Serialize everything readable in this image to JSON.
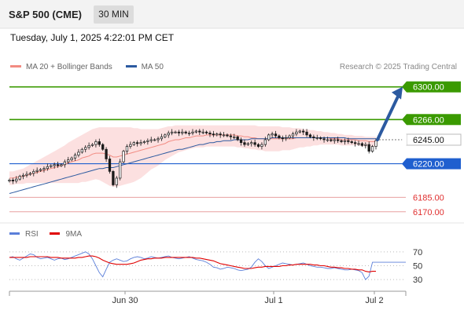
{
  "header": {
    "title": "S&P 500 (CME)",
    "timeframe": "30 MIN"
  },
  "datetime": "Tuesday, July 1, 2025 4:22:01 PM CET",
  "legend": [
    {
      "label": "MA 20 + Bollinger Bands",
      "color": "#f28b82"
    },
    {
      "label": "MA 50",
      "color": "#2c5aa0"
    }
  ],
  "research": "Research © 2025 Trading Central",
  "rsi_legend": [
    {
      "label": "RSI",
      "color": "#5b7fd9"
    },
    {
      "label": "9MA",
      "color": "#e00000"
    }
  ],
  "colors": {
    "up": "#1a1a1a",
    "down": "#1a1a1a",
    "green": "#3a9a00",
    "blue": "#1f5fcf",
    "red": "#e8a0a0",
    "band": "#fbd6d6"
  },
  "chart_data": [
    {
      "type": "candlestick",
      "ylim": [
        6160,
        6312
      ],
      "current_price": "6245.00",
      "levels": [
        {
          "label": "6300.00",
          "value": 6300,
          "style": "green"
        },
        {
          "label": "6266.00",
          "value": 6266,
          "style": "green"
        },
        {
          "label": "6245.00",
          "value": 6245,
          "style": "current"
        },
        {
          "label": "6220.00",
          "value": 6220,
          "style": "blue"
        },
        {
          "label": "6185.00",
          "value": 6185,
          "style": "red"
        },
        {
          "label": "6170.00",
          "value": 6170,
          "style": "red"
        }
      ],
      "x_ticks": [
        "Jun 30",
        "Jul 1",
        "Jul 2"
      ],
      "target_arrow": {
        "from": 6245,
        "to": 6300
      },
      "closes": [
        6203,
        6202,
        6204,
        6207,
        6208,
        6209,
        6210,
        6212,
        6213,
        6214,
        6215,
        6217,
        6218,
        6219,
        6218,
        6219,
        6222,
        6224,
        6226,
        6229,
        6232,
        6235,
        6237,
        6239,
        6240,
        6243,
        6240,
        6235,
        6225,
        6212,
        6198,
        6205,
        6222,
        6233,
        6238,
        6240,
        6242,
        6241,
        6242,
        6243,
        6244,
        6245,
        6245,
        6246,
        6248,
        6250,
        6252,
        6253,
        6253,
        6252,
        6253,
        6252,
        6252,
        6253,
        6254,
        6253,
        6253,
        6252,
        6251,
        6250,
        6251,
        6250,
        6250,
        6249,
        6248,
        6248,
        6245,
        6242,
        6240,
        6241,
        6242,
        6240,
        6238,
        6240,
        6245,
        6250,
        6251,
        6249,
        6247,
        6246,
        6247,
        6249,
        6251,
        6253,
        6254,
        6253,
        6250,
        6248,
        6247,
        6247,
        6246,
        6245,
        6245,
        6244,
        6245,
        6244,
        6243,
        6244,
        6243,
        6242,
        6241,
        6241,
        6239,
        6240,
        6233,
        6238,
        6244
      ],
      "ma20": [
        6205,
        6205,
        6206,
        6206,
        6207,
        6208,
        6209,
        6210,
        6211,
        6212,
        6213,
        6214,
        6215,
        6216,
        6217,
        6218,
        6219,
        6221,
        6222,
        6223,
        6224,
        6226,
        6227,
        6228,
        6230,
        6231,
        6231,
        6231,
        6230,
        6229,
        6227,
        6227,
        6228,
        6229,
        6230,
        6231,
        6232,
        6233,
        6234,
        6235,
        6236,
        6237,
        6238,
        6239,
        6240,
        6241,
        6243,
        6244,
        6245,
        6245,
        6246,
        6247,
        6247,
        6248,
        6249,
        6249,
        6249,
        6250,
        6250,
        6250,
        6250,
        6250,
        6250,
        6250,
        6250,
        6250,
        6249,
        6249,
        6248,
        6248,
        6247,
        6247,
        6246,
        6246,
        6246,
        6246,
        6246,
        6246,
        6246,
        6246,
        6246,
        6246,
        6246,
        6247,
        6247,
        6247,
        6247,
        6247,
        6247,
        6247,
        6247,
        6247,
        6247,
        6246,
        6246,
        6246,
        6245,
        6245,
        6245,
        6245,
        6245,
        6244,
        6244,
        6244,
        6243,
        6243,
        6243
      ],
      "bb_upper": [
        6212,
        6212,
        6213,
        6214,
        6215,
        6217,
        6219,
        6221,
        6223,
        6225,
        6227,
        6229,
        6231,
        6233,
        6235,
        6237,
        6239,
        6242,
        6244,
        6246,
        6248,
        6250,
        6252,
        6254,
        6256,
        6257,
        6258,
        6258,
        6258,
        6258,
        6258,
        6258,
        6258,
        6258,
        6258,
        6258,
        6257,
        6257,
        6256,
        6256,
        6256,
        6256,
        6256,
        6256,
        6257,
        6258,
        6259,
        6259,
        6260,
        6260,
        6260,
        6260,
        6260,
        6260,
        6260,
        6260,
        6260,
        6260,
        6260,
        6260,
        6260,
        6260,
        6260,
        6260,
        6260,
        6260,
        6260,
        6260,
        6260,
        6260,
        6260,
        6260,
        6259,
        6259,
        6259,
        6259,
        6259,
        6259,
        6259,
        6258,
        6258,
        6258,
        6257,
        6257,
        6257,
        6256,
        6256,
        6255,
        6255,
        6254,
        6254,
        6253,
        6253,
        6252,
        6252,
        6251,
        6251,
        6250,
        6250,
        6250,
        6249,
        6249,
        6249,
        6248,
        6248,
        6248,
        6248
      ],
      "bb_lower": [
        6198,
        6198,
        6199,
        6199,
        6199,
        6200,
        6200,
        6200,
        6200,
        6200,
        6200,
        6200,
        6200,
        6200,
        6200,
        6200,
        6200,
        6200,
        6200,
        6200,
        6200,
        6201,
        6201,
        6202,
        6203,
        6204,
        6203,
        6201,
        6199,
        6197,
        6196,
        6196,
        6197,
        6198,
        6199,
        6200,
        6201,
        6203,
        6205,
        6208,
        6211,
        6214,
        6216,
        6218,
        6221,
        6224,
        6226,
        6228,
        6230,
        6232,
        6233,
        6234,
        6235,
        6236,
        6237,
        6237,
        6237,
        6238,
        6238,
        6238,
        6238,
        6238,
        6238,
        6238,
        6238,
        6238,
        6237,
        6237,
        6236,
        6236,
        6235,
        6235,
        6234,
        6234,
        6233,
        6233,
        6233,
        6233,
        6233,
        6234,
        6234,
        6234,
        6235,
        6236,
        6237,
        6237,
        6238,
        6238,
        6239,
        6239,
        6240,
        6240,
        6240,
        6240,
        6240,
        6240,
        6239,
        6239,
        6239,
        6239,
        6239,
        6239,
        6238,
        6238,
        6238,
        6238,
        6238
      ],
      "ma50": [
        6189,
        6190,
        6191,
        6192,
        6193,
        6194,
        6195,
        6196,
        6197,
        6198,
        6199,
        6200,
        6201,
        6202,
        6203,
        6204,
        6205,
        6206,
        6207,
        6208,
        6209,
        6210,
        6211,
        6212,
        6213,
        6214,
        6215,
        6215,
        6216,
        6216,
        6216,
        6217,
        6218,
        6219,
        6220,
        6221,
        6222,
        6223,
        6224,
        6225,
        6226,
        6227,
        6228,
        6229,
        6230,
        6231,
        6232,
        6233,
        6234,
        6235,
        6235,
        6236,
        6237,
        6238,
        6239,
        6240,
        6240,
        6241,
        6242,
        6242,
        6243,
        6243,
        6244,
        6244,
        6244,
        6245,
        6245,
        6245,
        6245,
        6245,
        6246,
        6246,
        6246,
        6246,
        6246,
        6246,
        6247,
        6247,
        6247,
        6247,
        6247,
        6247,
        6247,
        6247,
        6247,
        6247,
        6247,
        6247,
        6247,
        6247,
        6247,
        6247,
        6247,
        6247,
        6247,
        6247,
        6247,
        6247,
        6246,
        6246,
        6246,
        6246,
        6246,
        6246,
        6246,
        6246,
        6246
      ]
    },
    {
      "type": "line",
      "ylim": [
        20,
        80
      ],
      "y_ticks": [
        "70",
        "50",
        "30"
      ],
      "series": [
        {
          "name": "RSI",
          "values": [
            62,
            63,
            60,
            58,
            61,
            64,
            67,
            66,
            62,
            60,
            61,
            62,
            60,
            58,
            60,
            61,
            59,
            60,
            62,
            64,
            66,
            68,
            70,
            67,
            60,
            50,
            40,
            34,
            45,
            55,
            58,
            60,
            58,
            56,
            57,
            60,
            62,
            63,
            62,
            60,
            61,
            63,
            62,
            61,
            62,
            63,
            64,
            62,
            61,
            60,
            61,
            62,
            63,
            61,
            59,
            58,
            57,
            55,
            52,
            48,
            47,
            45,
            46,
            48,
            47,
            46,
            44,
            43,
            44,
            45,
            48,
            55,
            60,
            56,
            50,
            46,
            48,
            50,
            52,
            54,
            53,
            52,
            51,
            52,
            53,
            54,
            52,
            50,
            49,
            48,
            48,
            47,
            46,
            46,
            47,
            46,
            45,
            44,
            44,
            45,
            44,
            43,
            40,
            30,
            35,
            55,
            55
          ]
        },
        {
          "name": "9MA",
          "values": [
            62,
            62,
            62,
            62,
            62,
            62,
            63,
            63,
            63,
            63,
            63,
            63,
            62,
            62,
            62,
            61,
            61,
            61,
            61,
            61,
            62,
            62,
            63,
            64,
            64,
            63,
            61,
            58,
            56,
            54,
            53,
            52,
            52,
            52,
            52,
            53,
            54,
            56,
            58,
            59,
            60,
            60,
            61,
            61,
            61,
            62,
            62,
            62,
            62,
            62,
            62,
            62,
            62,
            62,
            61,
            61,
            60,
            59,
            58,
            57,
            55,
            53,
            52,
            51,
            50,
            49,
            48,
            47,
            46,
            46,
            46,
            47,
            48,
            48,
            49,
            49,
            49,
            49,
            49,
            50,
            50,
            51,
            51,
            52,
            52,
            52,
            52,
            52,
            51,
            51,
            50,
            50,
            49,
            48,
            48,
            47,
            47,
            46,
            46,
            45,
            45,
            44,
            44,
            42,
            41,
            42,
            42
          ]
        }
      ]
    }
  ]
}
